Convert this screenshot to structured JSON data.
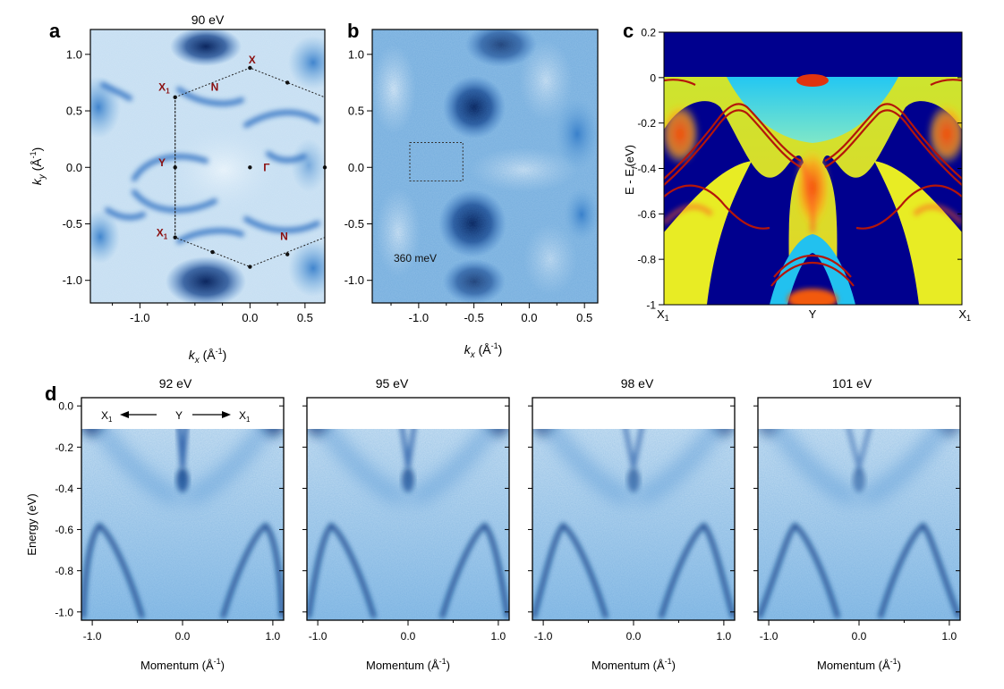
{
  "figure": {
    "panels": [
      {
        "id": "a",
        "letter": "a",
        "title": "90 eV",
        "xlabel_main": "k",
        "xlabel_sub": "x",
        "xlabel_unit": " (Å",
        "xlabel_exp": "-1",
        "xlabel_close": ")",
        "ylabel_main": "k",
        "ylabel_sub": "y",
        "ylabel_unit": " (Å",
        "ylabel_exp": "-1",
        "ylabel_close": ")",
        "xticks": [
          "-1.0",
          "0.0",
          "0.5"
        ],
        "yticks": [
          "1.0",
          "0.5",
          "0.0",
          "-0.5",
          "-1.0"
        ],
        "xlim": [
          -1.45,
          0.68
        ],
        "ylim": [
          -1.2,
          1.22
        ],
        "symmetry_points": [
          {
            "label": "X",
            "sub": "",
            "kx": 0.02,
            "ky": 0.95
          },
          {
            "label": "X",
            "sub": "1",
            "kx": -0.78,
            "ky": 0.71
          },
          {
            "label": "N",
            "sub": "",
            "kx": -0.32,
            "ky": 0.71
          },
          {
            "label": "Y",
            "sub": "",
            "kx": -0.8,
            "ky": 0.04
          },
          {
            "label": "Γ",
            "sub": "",
            "kx": 0.15,
            "ky": 0.0
          },
          {
            "label": "X",
            "sub": "1",
            "kx": -0.8,
            "ky": -0.58
          },
          {
            "label": "N",
            "sub": "",
            "kx": 0.31,
            "ky": -0.61
          }
        ],
        "bz_vertices": [
          {
            "kx": -0.68,
            "ky": 0.62
          },
          {
            "kx": 0.0,
            "ky": 0.88
          },
          {
            "kx": 0.68,
            "ky": 0.62
          },
          {
            "kx": 0.68,
            "ky": -0.62
          },
          {
            "kx": 0.0,
            "ky": -0.88
          },
          {
            "kx": -0.68,
            "ky": -0.62
          }
        ],
        "bz_dots": [
          {
            "kx": -0.68,
            "ky": 0.62
          },
          {
            "kx": 0.0,
            "ky": 0.88
          },
          {
            "kx": 0.34,
            "ky": 0.75
          },
          {
            "kx": -0.68,
            "ky": 0.0
          },
          {
            "kx": 0.0,
            "ky": 0.0
          },
          {
            "kx": 0.68,
            "ky": 0.0
          },
          {
            "kx": -0.68,
            "ky": -0.62
          },
          {
            "kx": -0.34,
            "ky": -0.75
          },
          {
            "kx": 0.0,
            "ky": -0.88
          },
          {
            "kx": 0.34,
            "ky": -0.77
          }
        ]
      },
      {
        "id": "b",
        "letter": "b",
        "title": "",
        "xlabel_main": "k",
        "xlabel_sub": "x",
        "xlabel_unit": " (Å",
        "xlabel_exp": "-1",
        "xlabel_close": ")",
        "xticks": [
          "-1.0",
          "-0.5",
          "0.0",
          "0.5"
        ],
        "yticks": [
          "1.0",
          "0.5",
          "0.0",
          "-0.5",
          "-1.0"
        ],
        "xlim": [
          -1.42,
          0.62
        ],
        "ylim": [
          -1.2,
          1.22
        ],
        "annotation": "360 meV",
        "dashed_box": {
          "kx0": -1.08,
          "kx1": -0.6,
          "ky0": -0.12,
          "ky1": 0.22
        }
      },
      {
        "id": "c",
        "letter": "c",
        "ylabel": "E - E",
        "ylabel_sub": "f",
        "ylabel_unit": "(eV)",
        "yticks": [
          "0.2",
          "0",
          "-0.2",
          "-0.4",
          "-0.6",
          "-0.8",
          "-1"
        ],
        "ylim": [
          -1.0,
          0.2
        ],
        "xtick_labels": [
          {
            "text": "X",
            "sub": "1"
          },
          {
            "text": "Y",
            "sub": ""
          },
          {
            "text": "X",
            "sub": "1"
          }
        ]
      }
    ],
    "panel_d": {
      "letter": "d",
      "ylabel": "Energy (eV)",
      "xlabel": "Momentum (Å",
      "xlabel_exp": "-1",
      "xlabel_close": ")",
      "xticks": [
        "-1.0",
        "0.0",
        "1.0"
      ],
      "yticks": [
        "0.0",
        "-0.2",
        "-0.4",
        "-0.6",
        "-0.8",
        "-1.0"
      ],
      "xlim": [
        -1.12,
        1.12
      ],
      "ylim": [
        -1.04,
        0.04
      ],
      "direction_labels": {
        "left": "X",
        "left_sub": "1",
        "center": "Y",
        "right": "X",
        "right_sub": "1"
      },
      "subpanels": [
        {
          "title": "92 eV"
        },
        {
          "title": "95 eV"
        },
        {
          "title": "98 eV"
        },
        {
          "title": "101 eV"
        }
      ]
    }
  },
  "colors": {
    "arpes_light": "#dfeef8",
    "arpes_mid": "#4f95d3",
    "arpes_dark": "#0a2a68",
    "calc_background": "#00008e",
    "calc_continuum": "#e1f01c",
    "calc_red": "#d9210d",
    "calc_cyan": "#1fc4ef",
    "symmetry_label": "#8b1010"
  }
}
